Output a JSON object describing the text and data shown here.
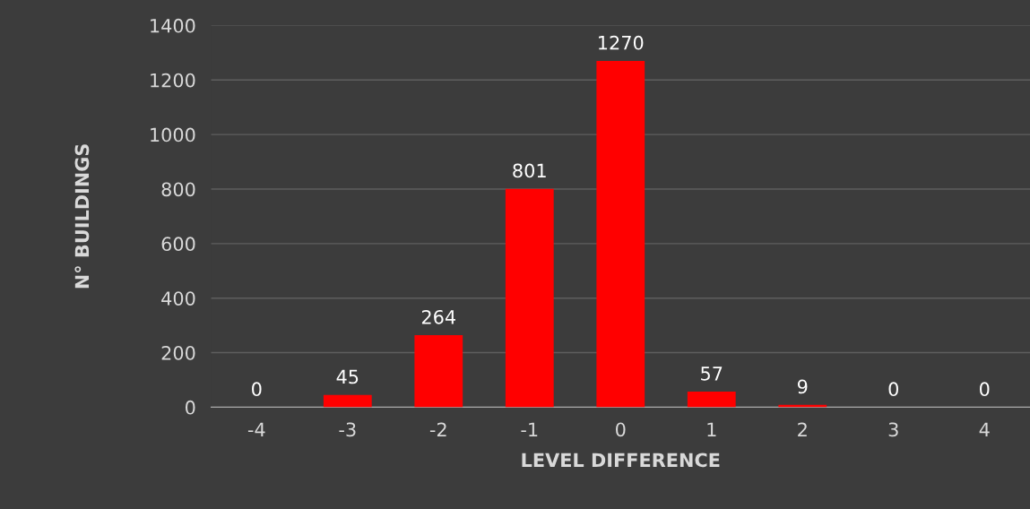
{
  "chart_data": {
    "type": "bar",
    "xlabel": "LEVEL DIFFERENCE",
    "ylabel": "N° BUILDINGS",
    "categories": [
      "-4",
      "-3",
      "-2",
      "-1",
      "0",
      "1",
      "2",
      "3",
      "4"
    ],
    "values": [
      0,
      45,
      264,
      801,
      1270,
      57,
      9,
      0,
      0
    ],
    "color": "#ff0000",
    "ylim": [
      0,
      1400
    ],
    "yticks": [
      0,
      200,
      400,
      600,
      800,
      1000,
      1200,
      1400
    ],
    "grid": "y",
    "data_labels": true
  }
}
